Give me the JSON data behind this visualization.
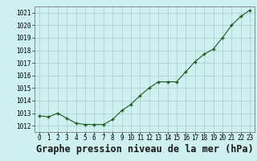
{
  "x": [
    0,
    1,
    2,
    3,
    4,
    5,
    6,
    7,
    8,
    9,
    10,
    11,
    12,
    13,
    14,
    15,
    16,
    17,
    18,
    19,
    20,
    21,
    22,
    23
  ],
  "y": [
    1012.8,
    1012.7,
    1013.0,
    1012.6,
    1012.2,
    1012.1,
    1012.1,
    1012.1,
    1012.5,
    1013.2,
    1013.7,
    1014.4,
    1015.0,
    1015.5,
    1015.5,
    1015.5,
    1016.3,
    1017.1,
    1017.7,
    1018.1,
    1019.0,
    1020.0,
    1020.7,
    1021.2
  ],
  "line_color": "#1a5c1a",
  "marker_color": "#1a5c1a",
  "bg_color": "#cff0f0",
  "grid_color": "#aacccc",
  "title": "Graphe pression niveau de la mer (hPa)",
  "xlim": [
    -0.5,
    23.5
  ],
  "ylim": [
    1011.5,
    1021.5
  ],
  "yticks": [
    1012,
    1013,
    1014,
    1015,
    1016,
    1017,
    1018,
    1019,
    1020,
    1021
  ],
  "xticks": [
    0,
    1,
    2,
    3,
    4,
    5,
    6,
    7,
    8,
    9,
    10,
    11,
    12,
    13,
    14,
    15,
    16,
    17,
    18,
    19,
    20,
    21,
    22,
    23
  ],
  "title_fontsize": 8.5,
  "tick_fontsize": 5.5
}
